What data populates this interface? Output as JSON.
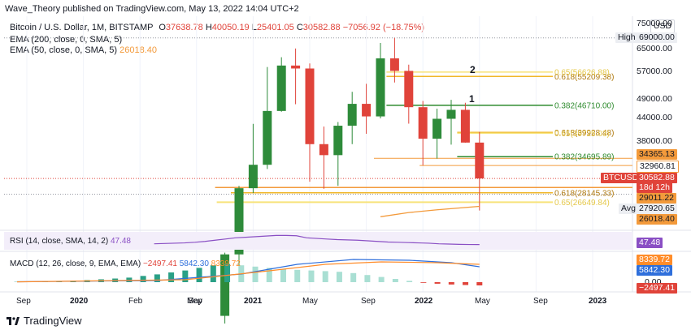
{
  "header": {
    "published": "Wave_Theory published on TradingView.com, May 13, 2022 14:04 UTC+2",
    "symbol": "Bitcoin / U.S. Dollar, 1M, BITSTAMP",
    "ohlc": [
      {
        "k": "O",
        "v": "37638.78"
      },
      {
        "k": "H",
        "v": "40050.19"
      },
      {
        "k": "L",
        "v": "25401.05"
      },
      {
        "k": "C",
        "v": "30582.88"
      }
    ],
    "change": "−7056.92 (−18.75%)",
    "ema200_label": "EMA (200, close, 0, SMA, 5)",
    "ema50_label": "EMA (50, close, 0, SMA, 5)",
    "ema50_value": "26018.40"
  },
  "currency": "USD",
  "price_axis": {
    "ticks": [
      "75000.00",
      "65000.00",
      "57000.00",
      "49000.00",
      "44000.00",
      "38000.00"
    ],
    "tags": {
      "high_label": "High",
      "high_value": "69000.00",
      "lvl1": "34365.13",
      "lvl2": "32960.81",
      "symbol": "BTCUSD",
      "close": "30582.88",
      "countdown": "18d 12h",
      "lvl3": "29011.22",
      "avg_label": "Avg",
      "avg_value": "27920.65",
      "ema50": "26018.40"
    }
  },
  "chart_data": {
    "type": "candlestick",
    "months": [
      "2019-09",
      "2019-10",
      "2019-11",
      "2019-12",
      "2020-01",
      "2020-02",
      "2020-03",
      "2020-04",
      "2020-05",
      "2020-06",
      "2020-07",
      "2020-08",
      "2020-09",
      "2020-10",
      "2020-11",
      "2020-12",
      "2021-01",
      "2021-02",
      "2021-03",
      "2021-04",
      "2021-05",
      "2021-06",
      "2021-07",
      "2021-08",
      "2021-09",
      "2021-10",
      "2021-11",
      "2021-12",
      "2022-01",
      "2022-02",
      "2022-03",
      "2022-04",
      "2022-05"
    ],
    "candles": [
      {
        "m": "2020-11",
        "o": 13800,
        "h": 19900,
        "l": 13200,
        "c": 19700
      },
      {
        "m": "2020-12",
        "o": 19700,
        "h": 29300,
        "l": 17600,
        "c": 28900
      },
      {
        "m": "2021-01",
        "o": 28900,
        "h": 41950,
        "l": 28100,
        "c": 33100
      },
      {
        "m": "2021-02",
        "o": 33100,
        "h": 58300,
        "l": 32300,
        "c": 45200
      },
      {
        "m": "2021-03",
        "o": 45200,
        "h": 61700,
        "l": 45000,
        "c": 58800
      },
      {
        "m": "2021-04",
        "o": 58800,
        "h": 64900,
        "l": 47000,
        "c": 57800
      },
      {
        "m": "2021-05",
        "o": 57800,
        "h": 59500,
        "l": 30000,
        "c": 37300
      },
      {
        "m": "2021-06",
        "o": 37300,
        "h": 41300,
        "l": 28800,
        "c": 35000
      },
      {
        "m": "2021-07",
        "o": 35000,
        "h": 42400,
        "l": 29300,
        "c": 41500
      },
      {
        "m": "2021-08",
        "o": 41500,
        "h": 50500,
        "l": 37300,
        "c": 47100
      },
      {
        "m": "2021-09",
        "o": 47100,
        "h": 52900,
        "l": 39600,
        "c": 43800
      },
      {
        "m": "2021-10",
        "o": 43800,
        "h": 67000,
        "l": 43300,
        "c": 61300
      },
      {
        "m": "2021-11",
        "o": 61300,
        "h": 69000,
        "l": 53300,
        "c": 57000
      },
      {
        "m": "2021-12",
        "o": 57000,
        "h": 59100,
        "l": 42000,
        "c": 46200
      },
      {
        "m": "2022-01",
        "o": 46200,
        "h": 47900,
        "l": 33000,
        "c": 38500
      },
      {
        "m": "2022-02",
        "o": 38500,
        "h": 45800,
        "l": 34300,
        "c": 43200
      },
      {
        "m": "2022-03",
        "o": 43200,
        "h": 48200,
        "l": 37200,
        "c": 45500
      },
      {
        "m": "2022-04",
        "o": 45500,
        "h": 47400,
        "l": 37600,
        "c": 37640
      },
      {
        "m": "2022-05",
        "o": 37638.78,
        "h": 40050.19,
        "l": 25401.05,
        "c": 30582.88
      }
    ],
    "fib_levels": [
      {
        "label": "0.618(55209.38)",
        "value": 55209.38,
        "color": "#f0b72a"
      },
      {
        "label": "0.65(56626.88)",
        "value": 56626.88,
        "color": "#f7e37a"
      },
      {
        "label": "0.382(46710.00)",
        "value": 46710.0,
        "color": "#2e8b2e"
      },
      {
        "label": "0.618(39928.48)",
        "value": 39928.48,
        "color": "#f0b72a"
      },
      {
        "label": "0.65(39725.03)",
        "value": 39725.03,
        "color": "#f7e37a"
      },
      {
        "label": "0.382(34695.89)",
        "value": 34695.89,
        "color": "#2e8b2e"
      },
      {
        "label": "0.618(28145.33)",
        "value": 28145.33,
        "color": "#f0b72a"
      },
      {
        "label": "0.65(26649.84)",
        "value": 26649.84,
        "color": "#f7e37a"
      }
    ],
    "wave_labels": [
      "2",
      "1"
    ],
    "horizontal_levels": [
      34365.13,
      32960.81,
      29011.22
    ],
    "colors": {
      "up": "#2e8b3a",
      "down": "#e0433a",
      "ema50": "#f39a3b",
      "ema200": "#4a90d9",
      "rsi": "#8a4fc4",
      "macd": "#2f6fdb",
      "signal": "#ff8c2a"
    }
  },
  "rsi": {
    "label": "RSI (14, close, SMA, 14, 2)",
    "value": "47.48"
  },
  "macd": {
    "label": "MACD (12, 26, close, 9, EMA, EMA)",
    "hist": "−2497.41",
    "macd": "5842.30",
    "signal": "8339.72",
    "zero": "0.00"
  },
  "time_axis": [
    "Sep",
    "2020",
    "Feb",
    "May",
    "Sep",
    "2021",
    "May",
    "Sep",
    "2022",
    "May",
    "Sep",
    "2023"
  ],
  "footer": {
    "brand": "TradingView"
  }
}
